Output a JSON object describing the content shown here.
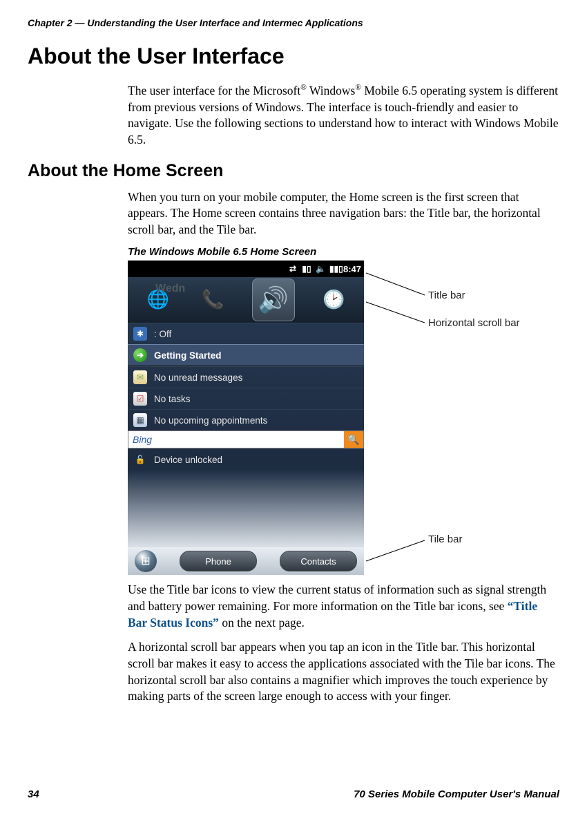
{
  "header": {
    "chapter_line": "Chapter 2 — Understanding the User Interface and Intermec Applications"
  },
  "section": {
    "title": "About the User Interface",
    "intro_html": "The user interface for the Microsoft<sup>®</sup> Windows<sup>®</sup> Mobile 6.5 operating system is different from previous versions of Windows. The interface is touch-friendly and easier to navigate. Use the following sections to understand how to interact with Windows Mobile 6.5."
  },
  "subsection": {
    "title": "About the Home Screen",
    "p1": "When you turn on your mobile computer, the Home screen is the first screen that appears. The Home screen contains three navigation bars: the Title bar, the horizontal scroll bar, and the Tile bar.",
    "figure_caption": "The Windows Mobile 6.5 Home Screen",
    "p2_pre": "Use the Title bar icons to view the current status of information such as signal strength and battery power remaining. For more information on the Title bar icons, see ",
    "p2_link": "“Title Bar Status Icons”",
    "p2_post": " on the next page.",
    "p3": "A horizontal scroll bar appears when you tap an icon in the Title bar. This horizontal scroll bar makes it easy to access the applications associated with the Tile bar icons. The horizontal scroll bar also contains a magnifier which improves the touch experience by making parts of the screen large enough to access with your finger."
  },
  "screenshot": {
    "title_bar": {
      "time": "8:47",
      "icons": [
        "conn-icon",
        "signal-icon",
        "volume-icon",
        "battery-icon"
      ]
    },
    "hscroll": {
      "bg_text": "Wedn",
      "items": [
        {
          "glyph": "🌐",
          "name": "globe-icon"
        },
        {
          "glyph": "📞",
          "name": "phone-icon"
        },
        {
          "glyph": "🔊",
          "name": "speaker-icon",
          "selected": true
        },
        {
          "glyph": "🕑",
          "name": "clock-icon"
        }
      ]
    },
    "rows": [
      {
        "icon_class": "ic-blue",
        "glyph": "✱",
        "label": ": Off",
        "name": "bt-row"
      },
      {
        "icon_class": "ic-green",
        "glyph": "➔",
        "label": "Getting Started",
        "selected": true,
        "name": "getting-started-row"
      },
      {
        "icon_class": "ic-env",
        "glyph": "✉",
        "label": "No unread messages",
        "name": "messages-row"
      },
      {
        "icon_class": "ic-task",
        "glyph": "☑",
        "label": "No tasks",
        "name": "tasks-row"
      },
      {
        "icon_class": "ic-cal",
        "glyph": "▦",
        "label": "No upcoming appointments",
        "name": "appointments-row"
      }
    ],
    "bing": {
      "label": "Bing",
      "search_glyph": "🔍"
    },
    "lock_row": {
      "glyph": "🔓",
      "label": "Device unlocked"
    },
    "tile_bar": {
      "start_glyph": "⊞",
      "left_btn": "Phone",
      "right_btn": "Contacts"
    }
  },
  "callouts": {
    "title_bar": "Title bar",
    "hscroll": "Horizontal scroll bar",
    "tile_bar": "Tile bar"
  },
  "footer": {
    "page_num": "34",
    "manual_name": "70 Series Mobile Computer User's Manual"
  },
  "colors": {
    "link": "#0b4f8a"
  }
}
